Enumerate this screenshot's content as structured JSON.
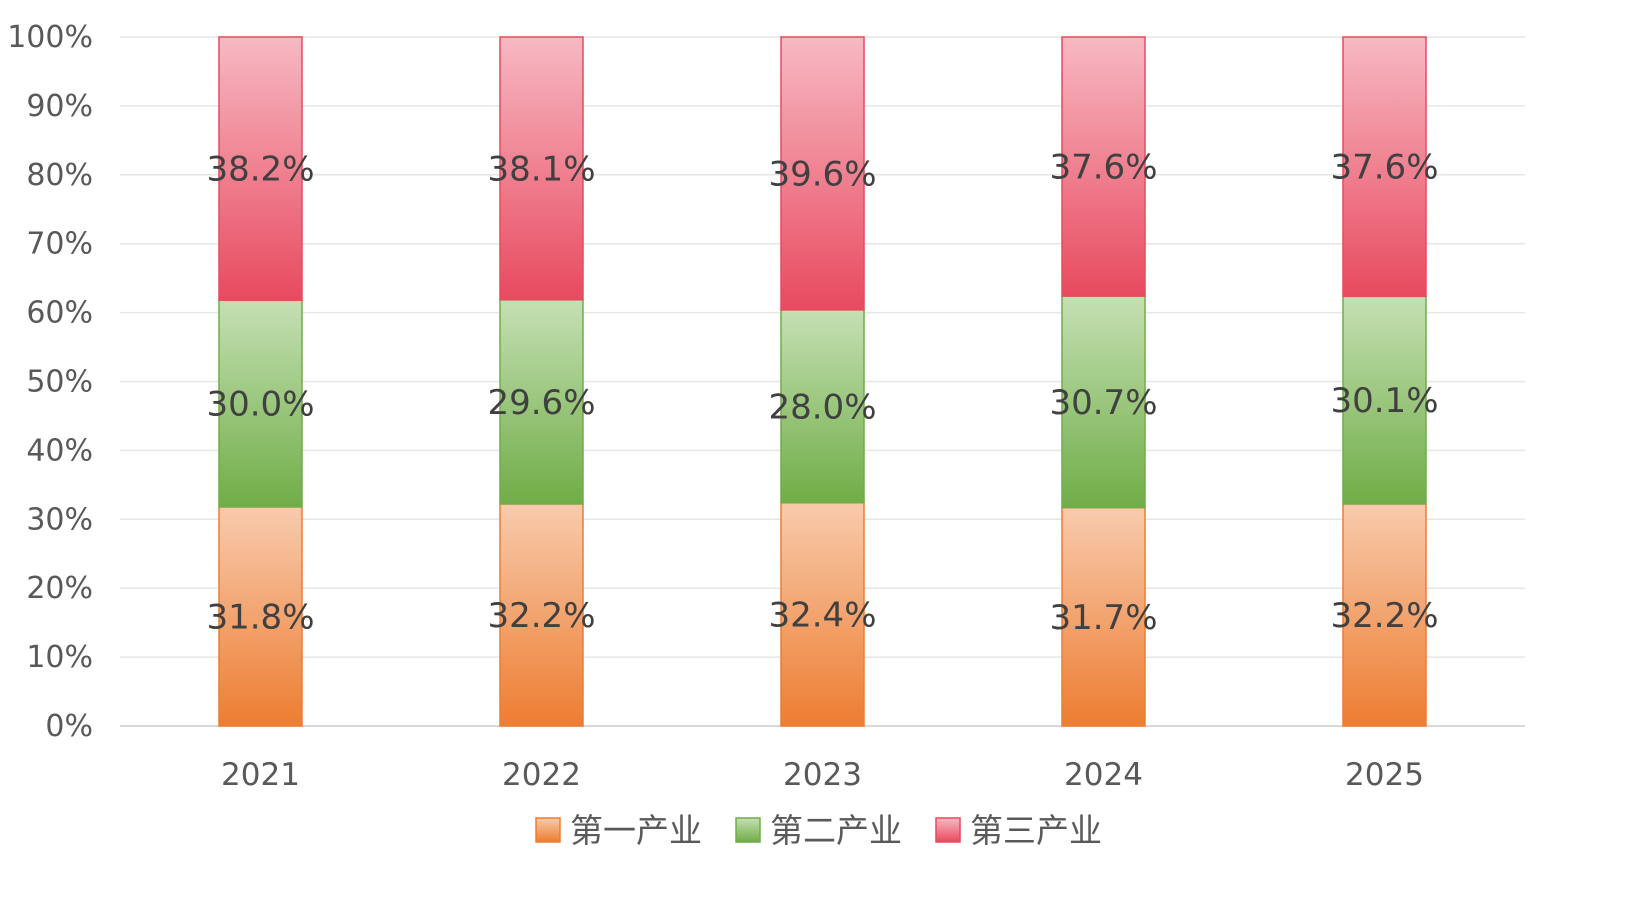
{
  "chart_data": {
    "type": "bar",
    "stacked": true,
    "percent_stacked": true,
    "title": "",
    "xlabel": "",
    "ylabel": "",
    "categories": [
      "2021",
      "2022",
      "2023",
      "2024",
      "2025"
    ],
    "yticks": [
      "0%",
      "10%",
      "20%",
      "30%",
      "40%",
      "50%",
      "60%",
      "70%",
      "80%",
      "90%",
      "100%"
    ],
    "ylim": [
      0,
      100
    ],
    "grid": true,
    "legend_position": "bottom",
    "series": [
      {
        "name": "第一产业",
        "values": [
          31.8,
          32.2,
          32.4,
          31.7,
          32.2
        ],
        "labels": [
          "31.8%",
          "32.2%",
          "32.4%",
          "31.7%",
          "32.2%"
        ],
        "color": "#ED7D31",
        "color_light": "#F8CBAD"
      },
      {
        "name": "第二产业",
        "values": [
          30.0,
          29.6,
          28.0,
          30.7,
          30.1
        ],
        "labels": [
          "30.0%",
          "29.6%",
          "28.0%",
          "30.7%",
          "30.1%"
        ],
        "color": "#70AD47",
        "color_light": "#C5E0B4"
      },
      {
        "name": "第三产业",
        "values": [
          38.2,
          38.1,
          39.6,
          37.6,
          37.6
        ],
        "labels": [
          "38.2%",
          "38.1%",
          "39.6%",
          "37.6%",
          "37.6%"
        ],
        "color": "#E84A5F",
        "color_light": "#F7B9C3"
      }
    ]
  }
}
